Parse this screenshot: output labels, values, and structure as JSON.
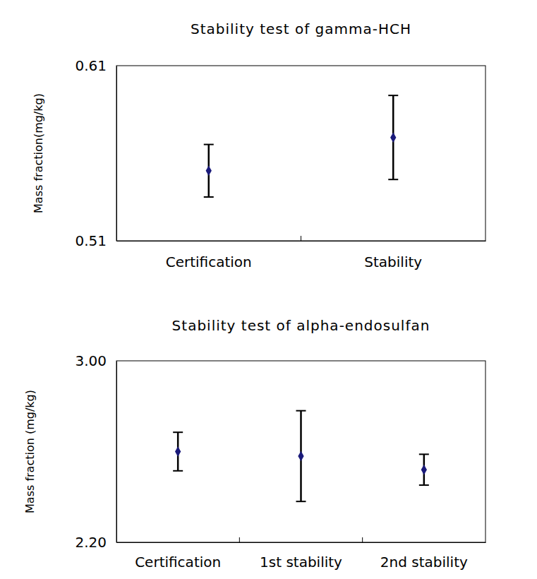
{
  "chart_data": [
    {
      "type": "scatter",
      "title": "Stability test of gamma-HCH",
      "y_label": "Mass fraction(mg/kg)",
      "categories": [
        "Certification",
        "Stability"
      ],
      "values": [
        0.55,
        0.569
      ],
      "errors": [
        0.015,
        0.024
      ],
      "color": "#1a1a7a",
      "marker": "diamond",
      "ylim": [
        0.51,
        0.61
      ],
      "yticks": [
        0.51,
        0.61
      ],
      "grid": false
    },
    {
      "type": "scatter",
      "title": "Stability test of alpha-endosulfan",
      "y_label": "Mass fraction (mg/kg)",
      "categories": [
        "Certification",
        "1st stability",
        "2nd stability"
      ],
      "values": [
        2.6,
        2.58,
        2.52
      ],
      "errors": [
        0.085,
        0.2,
        0.068
      ],
      "color": "#1a1a7a",
      "marker": "diamond",
      "ylim": [
        2.2,
        3.0
      ],
      "yticks": [
        {
          "value": 2.2,
          "label": "2.20"
        },
        {
          "value": 3.0,
          "label": "3.00"
        }
      ],
      "grid": false
    }
  ]
}
